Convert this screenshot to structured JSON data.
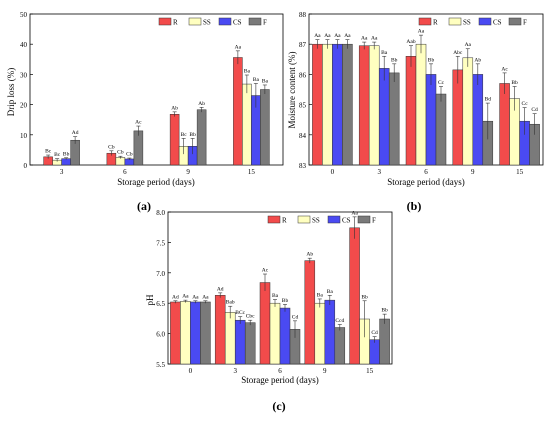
{
  "colors": {
    "R": "#f24b4b",
    "SS": "#ffffc0",
    "CS": "#4a4af2",
    "F": "#7a7a7a"
  },
  "chart_data": [
    {
      "type": "bar",
      "panel": "(a)",
      "xlabel": "Storage period (days)",
      "ylabel": "Drip loss (%)",
      "ylim": [
        0,
        50
      ],
      "yticks": [
        0,
        10,
        20,
        30,
        40,
        50
      ],
      "categories": [
        "3",
        "6",
        "9",
        "15"
      ],
      "legend": [
        "R",
        "SS",
        "CS",
        "F"
      ],
      "legend_position": "top-left",
      "series": [
        {
          "name": "R",
          "values": [
            2.7,
            3.9,
            16.8,
            35.6
          ],
          "errors": [
            0.6,
            0.8,
            0.8,
            2.2
          ],
          "labels": [
            "Bc",
            "Cb",
            "Ab",
            "Aa"
          ]
        },
        {
          "name": "SS",
          "values": [
            1.6,
            2.5,
            6.2,
            26.8
          ],
          "errors": [
            0.5,
            0.4,
            2.6,
            3.0
          ],
          "labels": [
            "Bc",
            "Cb",
            "Bc",
            "Ba"
          ]
        },
        {
          "name": "CS",
          "values": [
            2.1,
            2.0,
            6.2,
            23.0
          ],
          "errors": [
            0.3,
            0.3,
            2.6,
            4.0
          ],
          "labels": [
            "Bb",
            "Cb",
            "Bb",
            "Ba"
          ]
        },
        {
          "name": "F",
          "values": [
            8.2,
            11.3,
            18.3,
            25.0
          ],
          "errors": [
            1.2,
            1.6,
            0.8,
            1.5
          ],
          "labels": [
            "Ad",
            "Ac",
            "Ab",
            "Ba"
          ]
        }
      ]
    },
    {
      "type": "bar",
      "panel": "(b)",
      "xlabel": "Storage period (days)",
      "ylabel": "Moisture content (%)",
      "ylim": [
        83,
        88
      ],
      "yticks": [
        83,
        84,
        85,
        86,
        87,
        88
      ],
      "categories": [
        "0",
        "3",
        "6",
        "9",
        "15"
      ],
      "legend": [
        "R",
        "SS",
        "CS",
        "F"
      ],
      "legend_position": "top-left",
      "series": [
        {
          "name": "R",
          "values": [
            87.0,
            86.95,
            86.6,
            86.15,
            85.7
          ],
          "errors": [
            0.15,
            0.12,
            0.35,
            0.45,
            0.35
          ],
          "labels": [
            "Aa",
            "Aa",
            "Aab",
            "Abc",
            "Ac"
          ]
        },
        {
          "name": "SS",
          "values": [
            87.0,
            86.95,
            87.0,
            86.55,
            85.2
          ],
          "errors": [
            0.15,
            0.12,
            0.3,
            0.3,
            0.4
          ],
          "labels": [
            "Aa",
            "Aa",
            "Aa",
            "Aa",
            "Bb"
          ]
        },
        {
          "name": "CS",
          "values": [
            87.0,
            86.2,
            86.0,
            86.0,
            84.45
          ],
          "errors": [
            0.15,
            0.4,
            0.35,
            0.35,
            0.45
          ],
          "labels": [
            "Aa",
            "Ba",
            "Bb",
            "Ab",
            "Cc"
          ]
        },
        {
          "name": "F",
          "values": [
            87.0,
            86.05,
            85.35,
            84.45,
            84.35
          ],
          "errors": [
            0.15,
            0.3,
            0.25,
            0.6,
            0.35
          ],
          "labels": [
            "Aa",
            "Bb",
            "Cc",
            "Bd",
            "Cd"
          ]
        }
      ]
    },
    {
      "type": "bar",
      "panel": "(c)",
      "xlabel": "Storage period (days)",
      "ylabel": "pH",
      "ylim": [
        5.5,
        8.0
      ],
      "yticks": [
        5.5,
        6.0,
        6.5,
        7.0,
        7.5,
        8.0
      ],
      "categories": [
        "0",
        "3",
        "6",
        "9",
        "15"
      ],
      "legend": [
        "R",
        "SS",
        "CS",
        "F"
      ],
      "legend_position": "top-left",
      "series": [
        {
          "name": "R",
          "values": [
            6.52,
            6.63,
            6.84,
            7.2,
            7.74
          ],
          "errors": [
            0.02,
            0.04,
            0.14,
            0.04,
            0.18
          ],
          "labels": [
            "Ad",
            "Ad",
            "Ac",
            "Ab",
            "Aa"
          ]
        },
        {
          "name": "SS",
          "values": [
            6.53,
            6.35,
            6.5,
            6.5,
            6.24
          ],
          "errors": [
            0.02,
            0.1,
            0.06,
            0.07,
            0.3
          ],
          "labels": [
            "Aa",
            "Bab",
            "Ba",
            "Ba",
            "Bb"
          ]
        },
        {
          "name": "CS",
          "values": [
            6.52,
            6.22,
            6.42,
            6.55,
            5.9
          ],
          "errors": [
            0.02,
            0.06,
            0.06,
            0.08,
            0.05
          ],
          "labels": [
            "Aa",
            "BCc",
            "Bb",
            "Ba",
            "Cd"
          ]
        },
        {
          "name": "F",
          "values": [
            6.52,
            6.18,
            6.07,
            6.1,
            6.24
          ],
          "errors": [
            0.02,
            0.04,
            0.14,
            0.05,
            0.08
          ],
          "labels": [
            "Aa",
            "Cbc",
            "Cd",
            "Ccd",
            "Bb"
          ]
        }
      ]
    }
  ]
}
